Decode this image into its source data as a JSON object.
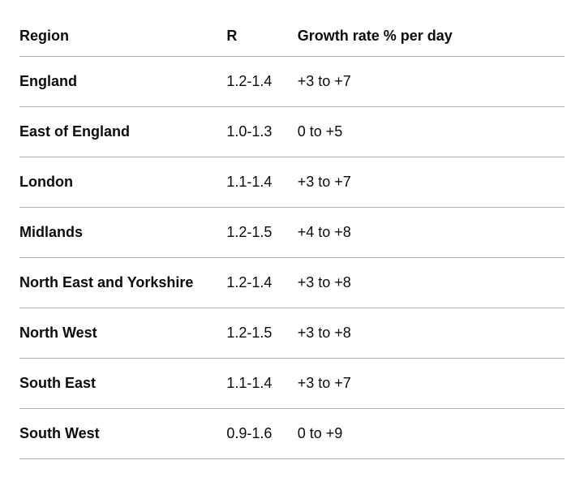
{
  "table": {
    "type": "table",
    "background_color": "#ffffff",
    "text_color": "#0b0c0c",
    "border_color": "#b1b4b6",
    "header_fontsize": 18,
    "cell_fontsize": 18,
    "header_fontweight": 700,
    "region_fontweight": 700,
    "columns": [
      {
        "key": "region",
        "label": "Region",
        "width_pct": 38,
        "align": "left",
        "bold": true
      },
      {
        "key": "r",
        "label": "R",
        "width_pct": 13,
        "align": "left",
        "bold": false
      },
      {
        "key": "growth",
        "label": "Growth rate % per day",
        "width_pct": 49,
        "align": "left",
        "bold": false
      }
    ],
    "rows": [
      {
        "region": "England",
        "r": "1.2-1.4",
        "growth": "+3 to +7"
      },
      {
        "region": "East of England",
        "r": "1.0-1.3",
        "growth": "0 to +5"
      },
      {
        "region": "London",
        "r": "1.1-1.4",
        "growth": "+3 to +7"
      },
      {
        "region": "Midlands",
        "r": "1.2-1.5",
        "growth": "+4 to +8"
      },
      {
        "region": "North East and Yorkshire",
        "r": "1.2-1.4",
        "growth": "+3 to +8"
      },
      {
        "region": "North West",
        "r": "1.2-1.5",
        "growth": "+3 to +8"
      },
      {
        "region": "South East",
        "r": "1.1-1.4",
        "growth": "+3 to +7"
      },
      {
        "region": "South West",
        "r": "0.9-1.6",
        "growth": "0 to +9"
      }
    ]
  }
}
